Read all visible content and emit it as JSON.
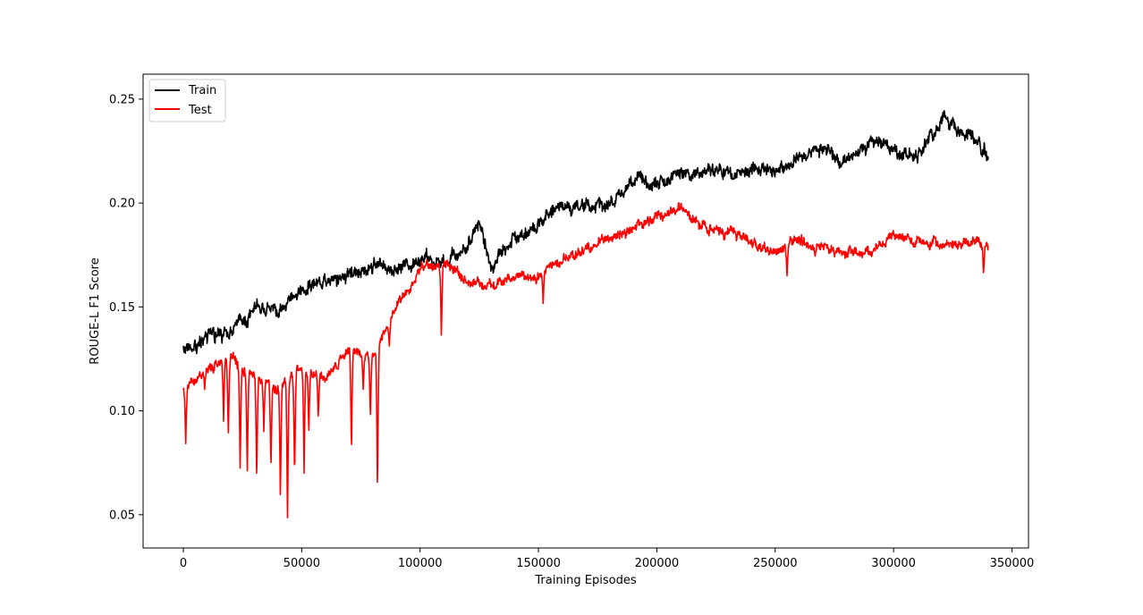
{
  "chart_data": {
    "type": "line",
    "title": "",
    "xlabel": "Training Episodes",
    "ylabel": "ROUGE-L F1 Score",
    "xlim": [
      -17000,
      357000
    ],
    "ylim": [
      0.034,
      0.262
    ],
    "xticks": [
      0,
      50000,
      100000,
      150000,
      200000,
      250000,
      300000,
      350000
    ],
    "xtick_labels": [
      "0",
      "50000",
      "100000",
      "150000",
      "200000",
      "250000",
      "300000",
      "350000"
    ],
    "yticks": [
      0.05,
      0.1,
      0.15,
      0.2,
      0.25
    ],
    "ytick_labels": [
      "0.05",
      "0.10",
      "0.15",
      "0.20",
      "0.25"
    ],
    "grid": false,
    "legend_position": "top-left",
    "series": [
      {
        "name": "Train",
        "color": "#000000",
        "x": [
          0,
          10000,
          20000,
          30000,
          40000,
          50000,
          60000,
          70000,
          80000,
          90000,
          100000,
          110000,
          120000,
          125000,
          130000,
          140000,
          150000,
          160000,
          170000,
          180000,
          190000,
          200000,
          210000,
          220000,
          230000,
          240000,
          250000,
          260000,
          270000,
          280000,
          290000,
          300000,
          310000,
          320000,
          330000,
          340000
        ],
        "y": [
          0.13,
          0.134,
          0.14,
          0.15,
          0.148,
          0.16,
          0.165,
          0.168,
          0.172,
          0.168,
          0.172,
          0.17,
          0.18,
          0.192,
          0.17,
          0.185,
          0.19,
          0.2,
          0.2,
          0.198,
          0.21,
          0.208,
          0.212,
          0.215,
          0.215,
          0.218,
          0.215,
          0.22,
          0.228,
          0.222,
          0.232,
          0.228,
          0.222,
          0.24,
          0.235,
          0.224
        ],
        "noise": 0.008
      },
      {
        "name": "Test",
        "color": "#ff0000",
        "x": [
          0,
          10000,
          20000,
          30000,
          40000,
          50000,
          60000,
          70000,
          80000,
          90000,
          100000,
          110000,
          120000,
          130000,
          140000,
          150000,
          160000,
          170000,
          180000,
          190000,
          200000,
          210000,
          220000,
          230000,
          240000,
          250000,
          260000,
          270000,
          280000,
          290000,
          300000,
          310000,
          320000,
          330000,
          340000
        ],
        "y": [
          0.11,
          0.12,
          0.125,
          0.115,
          0.11,
          0.12,
          0.115,
          0.13,
          0.125,
          0.15,
          0.168,
          0.17,
          0.162,
          0.16,
          0.165,
          0.165,
          0.172,
          0.178,
          0.182,
          0.19,
          0.193,
          0.196,
          0.19,
          0.185,
          0.182,
          0.176,
          0.182,
          0.18,
          0.178,
          0.176,
          0.184,
          0.182,
          0.18,
          0.182,
          0.18
        ],
        "noise": 0.006
      }
    ],
    "dips": {
      "Test": [
        {
          "x": 1000,
          "y": 0.083
        },
        {
          "x": 9000,
          "y": 0.11
        },
        {
          "x": 17000,
          "y": 0.095
        },
        {
          "x": 19000,
          "y": 0.086
        },
        {
          "x": 24000,
          "y": 0.069
        },
        {
          "x": 27000,
          "y": 0.068
        },
        {
          "x": 31000,
          "y": 0.063
        },
        {
          "x": 34000,
          "y": 0.09
        },
        {
          "x": 37000,
          "y": 0.07
        },
        {
          "x": 41000,
          "y": 0.056
        },
        {
          "x": 44000,
          "y": 0.044
        },
        {
          "x": 47000,
          "y": 0.065
        },
        {
          "x": 51000,
          "y": 0.07
        },
        {
          "x": 53000,
          "y": 0.088
        },
        {
          "x": 57000,
          "y": 0.095
        },
        {
          "x": 65000,
          "y": 0.12
        },
        {
          "x": 71000,
          "y": 0.077
        },
        {
          "x": 76000,
          "y": 0.11
        },
        {
          "x": 79000,
          "y": 0.095
        },
        {
          "x": 82000,
          "y": 0.056
        },
        {
          "x": 87000,
          "y": 0.13
        },
        {
          "x": 109000,
          "y": 0.134
        },
        {
          "x": 152000,
          "y": 0.151
        },
        {
          "x": 255000,
          "y": 0.165
        },
        {
          "x": 338000,
          "y": 0.165
        }
      ]
    }
  }
}
